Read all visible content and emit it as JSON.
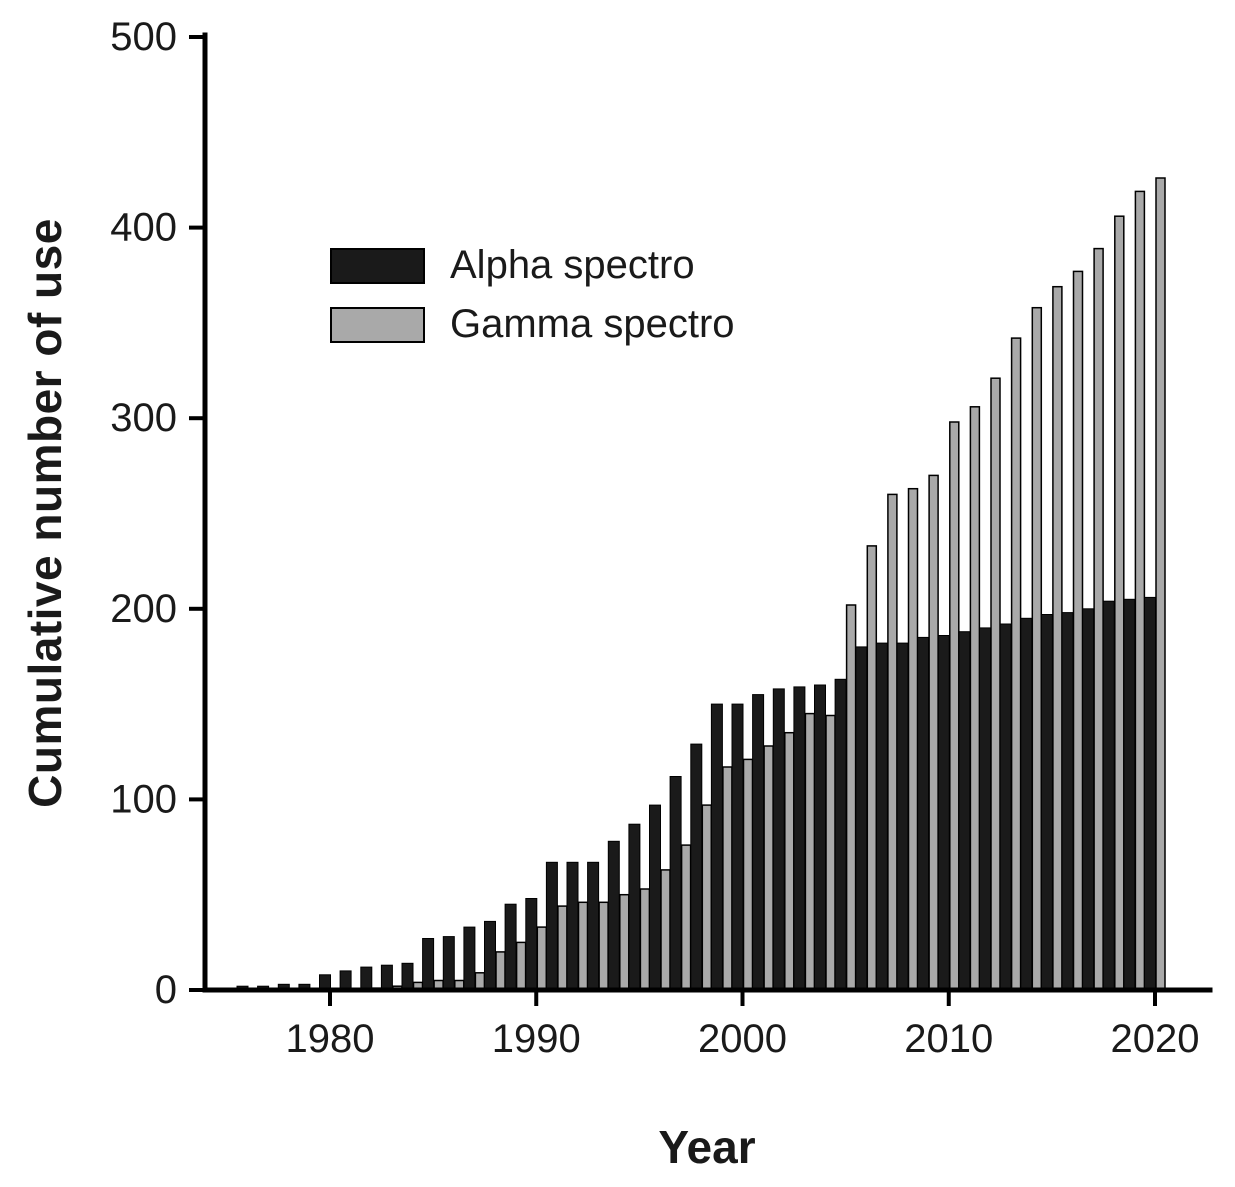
{
  "figure": {
    "ylabel": "Cumulative number of use",
    "xlabel": "Year"
  },
  "legend": {
    "items": [
      {
        "label": "Alpha spectro",
        "color": "#1a1a1a"
      },
      {
        "label": "Gamma spectro",
        "color": "#a9a9a9"
      }
    ]
  },
  "chart_data": {
    "type": "bar",
    "title": "",
    "xlabel": "Year",
    "ylabel": "Cumulative number of use",
    "ylim": [
      0,
      500
    ],
    "yticks": [
      0,
      100,
      200,
      300,
      400,
      500
    ],
    "xticks": [
      1980,
      1990,
      2000,
      2010,
      2020
    ],
    "grid": false,
    "legend_position": "upper-left-inside",
    "x": [
      1976,
      1977,
      1978,
      1979,
      1980,
      1981,
      1982,
      1983,
      1984,
      1985,
      1986,
      1987,
      1988,
      1989,
      1990,
      1991,
      1992,
      1993,
      1994,
      1995,
      1996,
      1997,
      1998,
      1999,
      2000,
      2001,
      2002,
      2003,
      2004,
      2005,
      2006,
      2007,
      2008,
      2009,
      2010,
      2011,
      2012,
      2013,
      2014,
      2015,
      2016,
      2017,
      2018,
      2019,
      2020
    ],
    "series": [
      {
        "name": "Alpha spectro",
        "color": "#1a1a1a",
        "values": [
          2,
          2,
          3,
          3,
          8,
          10,
          12,
          13,
          14,
          27,
          28,
          33,
          36,
          45,
          48,
          67,
          67,
          67,
          78,
          87,
          97,
          112,
          129,
          150,
          150,
          155,
          158,
          159,
          160,
          163,
          180,
          182,
          182,
          185,
          186,
          188,
          190,
          192,
          195,
          197,
          198,
          200,
          204,
          205,
          206
        ]
      },
      {
        "name": "Gamma spectro",
        "color": "#a9a9a9",
        "values": [
          0,
          0,
          0,
          0,
          0,
          0,
          1,
          2,
          4,
          5,
          5,
          9,
          20,
          25,
          33,
          44,
          46,
          46,
          50,
          53,
          63,
          76,
          97,
          117,
          121,
          128,
          135,
          145,
          144,
          202,
          233,
          260,
          263,
          270,
          298,
          306,
          321,
          342,
          358,
          369,
          377,
          389,
          406,
          419,
          426
        ]
      }
    ]
  }
}
